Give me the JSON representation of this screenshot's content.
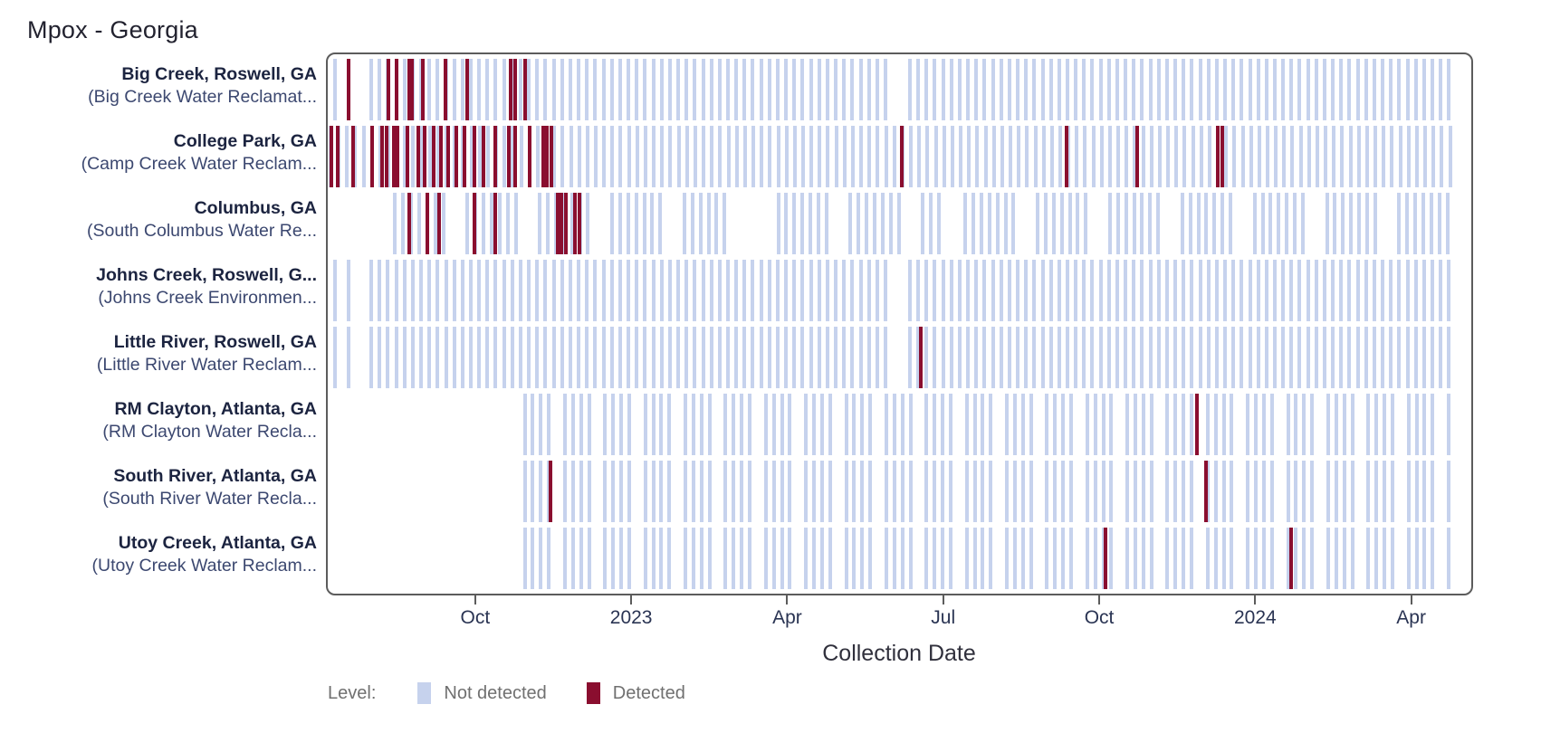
{
  "chart_data": {
    "type": "detection-timeline",
    "title": "Mpox - Georgia",
    "xlabel": "Collection Date",
    "legend_label": "Level:",
    "levels": [
      {
        "key": "not_detected",
        "label": "Not detected",
        "color": "#c6d2ed"
      },
      {
        "key": "detected",
        "label": "Detected",
        "color": "#8a0e2f"
      }
    ],
    "x_axis": {
      "unit": "months since 2022-07-01",
      "domain": [
        0.13,
        22.19
      ],
      "grid": false,
      "ticks": [
        {
          "m": 3,
          "label": "Oct"
        },
        {
          "m": 6,
          "label": "2023"
        },
        {
          "m": 9,
          "label": "Apr"
        },
        {
          "m": 12,
          "label": "Jul"
        },
        {
          "m": 15,
          "label": "Oct"
        },
        {
          "m": 18,
          "label": "2024"
        },
        {
          "m": 21,
          "label": "Apr"
        }
      ]
    },
    "sites": [
      {
        "label": "Big Creek, Roswell, GA",
        "sublabel": "(Big Creek Water Reclamat...",
        "pattern": null,
        "segments": [
          [
            0.27,
            0.6,
            0.26
          ],
          [
            0.97,
            11.03,
            0.16
          ],
          [
            11.36,
            21.82,
            0.16
          ]
        ],
        "detected": [
          0.53,
          1.3,
          1.46,
          1.71,
          1.76,
          1.97,
          2.4,
          2.82,
          3.66,
          3.75,
          3.94
        ]
      },
      {
        "label": "College Park, GA",
        "sublabel": "(Camp Creek Water Reclam...",
        "pattern": null,
        "segments": [
          [
            0.18,
            21.82,
            0.16
          ]
        ],
        "detected": [
          0.2,
          0.32,
          0.62,
          0.99,
          1.18,
          1.27,
          1.41,
          1.48,
          1.67,
          1.88,
          2.0,
          2.18,
          2.32,
          2.46,
          2.61,
          2.76,
          2.96,
          3.14,
          3.37,
          3.63,
          3.75,
          4.03,
          4.28,
          4.36,
          4.45,
          11.2,
          14.39,
          15.75,
          17.3,
          17.38
        ]
      },
      {
        "label": "Columbus, GA",
        "sublabel": "(South Columbus Water Re...",
        "pattern": [
          7,
          2
        ],
        "segments": [
          [
            1.43,
            7.79,
            0.155
          ],
          [
            8.82,
            11.92,
            0.155
          ],
          [
            12.43,
            21.82,
            0.155
          ]
        ],
        "detected": [
          1.71,
          2.06,
          2.28,
          2.96,
          3.37,
          4.56,
          4.64,
          4.73,
          4.89,
          4.98
        ]
      },
      {
        "label": "Johns Creek, Roswell, G...",
        "sublabel": "(Johns Creek Environmen...",
        "pattern": null,
        "segments": [
          [
            0.27,
            0.6,
            0.26
          ],
          [
            0.97,
            11.03,
            0.16
          ],
          [
            11.36,
            21.82,
            0.16
          ]
        ],
        "detected": []
      },
      {
        "label": "Little River, Roswell, GA",
        "sublabel": "(Little River Water Reclam...",
        "pattern": null,
        "segments": [
          [
            0.27,
            0.6,
            0.26
          ],
          [
            0.97,
            11.03,
            0.16
          ],
          [
            11.36,
            21.82,
            0.16
          ]
        ],
        "detected": [
          11.57
        ]
      },
      {
        "label": "RM Clayton, Atlanta, GA",
        "sublabel": "(RM Clayton Water Recla...",
        "pattern": [
          4,
          1
        ],
        "segments": [
          [
            3.93,
            21.82,
            0.155
          ]
        ],
        "detected": [
          16.9
        ]
      },
      {
        "label": "South River, Atlanta, GA",
        "sublabel": "(South River Water Recla...",
        "pattern": [
          4,
          1
        ],
        "segments": [
          [
            3.93,
            21.82,
            0.155
          ]
        ],
        "detected": [
          4.42,
          17.08
        ]
      },
      {
        "label": "Utoy Creek, Atlanta, GA",
        "sublabel": "(Utoy Creek Water Reclam...",
        "pattern": [
          4,
          1
        ],
        "segments": [
          [
            3.93,
            21.82,
            0.155
          ]
        ],
        "detected": [
          15.14,
          18.71
        ]
      }
    ]
  }
}
